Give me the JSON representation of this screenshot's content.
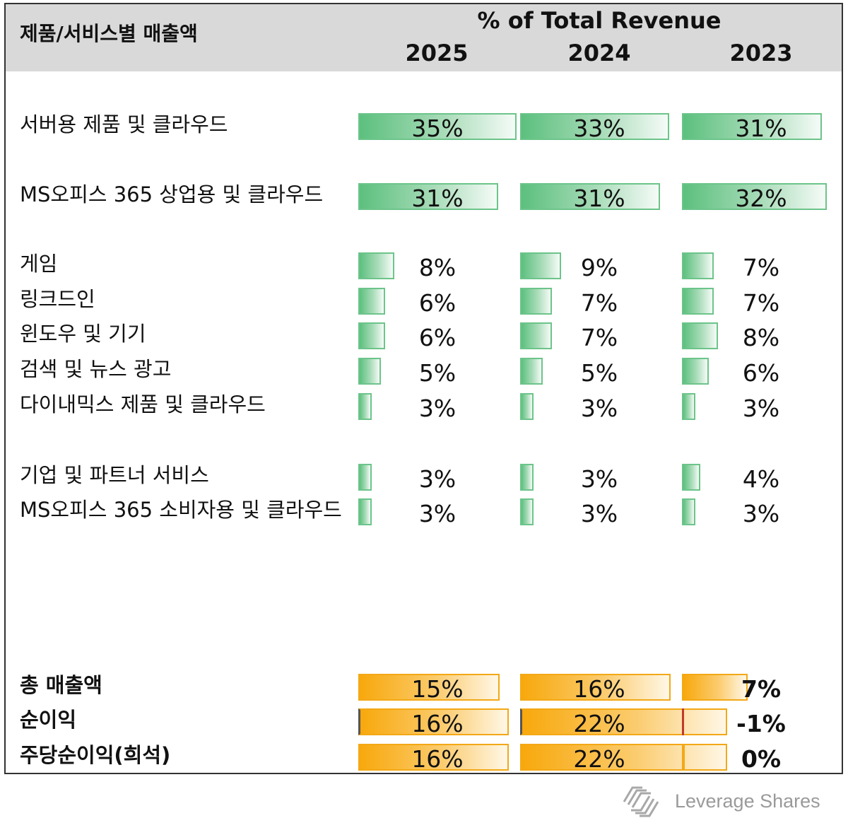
{
  "header": {
    "title": "제품/서비스별 매출액",
    "metric": "% of Total Revenue",
    "years": [
      "2025",
      "2024",
      "2023"
    ]
  },
  "chart_data": {
    "type": "bar",
    "title": "% of Total Revenue",
    "categories": [
      "서버용 제품 및 클라우드",
      "MS오피스 365 상업용 및 클라우드",
      "게임",
      "링크드인",
      "윈도우 및 기기",
      "검색 및 뉴스 광고",
      "다이내믹스 제품 및 클라우드",
      "기업 및 파트너 서비스",
      "MS오피스 365 소비자용 및 클라우드",
      "총 매출액",
      "순이익",
      "주당순이익(희석)"
    ],
    "rows": [
      {
        "label": "서버용 제품 및 클라우드",
        "group": "segment",
        "values": [
          35,
          33,
          31
        ],
        "labels": [
          "35%",
          "33%",
          "31%"
        ]
      },
      {
        "label": "MS오피스 365 상업용 및 클라우드",
        "group": "segment",
        "values": [
          31,
          31,
          32
        ],
        "labels": [
          "31%",
          "31%",
          "32%"
        ]
      },
      {
        "label": "게임",
        "group": "segment",
        "values": [
          8,
          9,
          7
        ],
        "labels": [
          "8%",
          "9%",
          "7%"
        ]
      },
      {
        "label": "링크드인",
        "group": "segment",
        "values": [
          6,
          7,
          7
        ],
        "labels": [
          "6%",
          "7%",
          "7%"
        ]
      },
      {
        "label": "윈도우 및 기기",
        "group": "segment",
        "values": [
          6,
          7,
          8
        ],
        "labels": [
          "6%",
          "7%",
          "8%"
        ]
      },
      {
        "label": "검색 및 뉴스 광고",
        "group": "segment",
        "values": [
          5,
          5,
          6
        ],
        "labels": [
          "5%",
          "5%",
          "6%"
        ]
      },
      {
        "label": "다이내믹스 제품 및 클라우드",
        "group": "segment",
        "values": [
          3,
          3,
          3
        ],
        "labels": [
          "3%",
          "3%",
          "3%"
        ]
      },
      {
        "label": "기업 및 파트너 서비스",
        "group": "segment",
        "values": [
          3,
          3,
          4
        ],
        "labels": [
          "3%",
          "3%",
          "4%"
        ]
      },
      {
        "label": "MS오피스 365 소비자용 및 클라우드",
        "group": "segment",
        "values": [
          3,
          3,
          3
        ],
        "labels": [
          "3%",
          "3%",
          "3%"
        ]
      },
      {
        "label": "총 매출액",
        "group": "growth",
        "values": [
          15,
          16,
          7
        ],
        "labels": [
          "15%",
          "16%",
          "7%"
        ]
      },
      {
        "label": "순이익",
        "group": "growth",
        "values": [
          16,
          22,
          -1
        ],
        "labels": [
          "16%",
          "22%",
          "-1%"
        ]
      },
      {
        "label": "주당순이익(희석)",
        "group": "growth",
        "values": [
          16,
          22,
          0
        ],
        "labels": [
          "16%",
          "22%",
          "0%"
        ]
      }
    ],
    "colors": {
      "segment": "#5cc07e",
      "growth": "#f8a80c",
      "negative": "#c0392b"
    },
    "legend": "none",
    "grid": false
  },
  "brand": {
    "name": "Leverage Shares",
    "logo_icon": "leverage-shares-logo-icon"
  }
}
